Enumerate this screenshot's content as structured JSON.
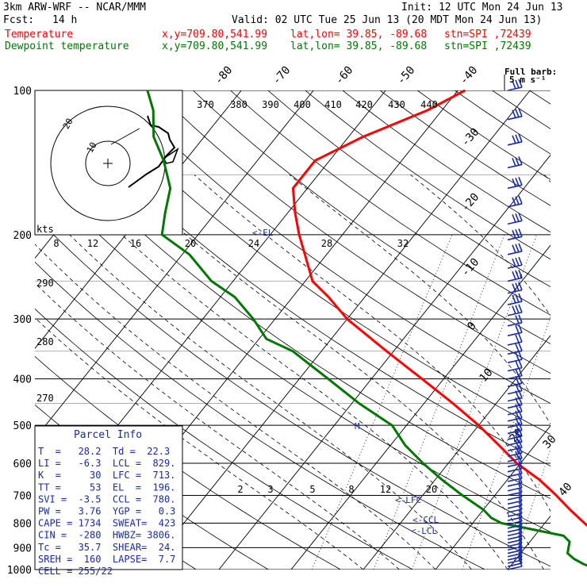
{
  "header": {
    "model": "3km ARW-WRF -- NCAR/MMM",
    "init": "Init: 12 UTC Mon 24 Jun 13",
    "fcst_label": "Fcst:",
    "fcst_value": "14 h",
    "valid": "Valid: 02 UTC Tue 25 Jun 13 (20 MDT Mon 24 Jun 13)",
    "lines": [
      {
        "name": "Temperature",
        "loc": "x,y=709.80,541.99",
        "latlon": "lat,lon= 39.85, -89.68",
        "stn": "stn=SPI ,72439",
        "color": "#ff0000"
      },
      {
        "name": "Dewpoint temperature",
        "loc": "x,y=709.80,541.99",
        "latlon": "lat,lon= 39.85, -89.68",
        "stn": "stn=SPI ,72439",
        "color": "#007700"
      }
    ]
  },
  "wind_key": {
    "title": "Full barb:",
    "value": "5 m s⁻¹"
  },
  "hodograph": {
    "unit": "kts",
    "ring_labels": [
      "10",
      "20"
    ]
  },
  "parcel_info": {
    "title": "Parcel Info",
    "rows": [
      "T  =   28.2  Td =  22.3",
      "LI =   -6.3  LCL =  829.",
      "K  =     30  LFC =  713.",
      "TT =     53  EL  =  196.",
      "SVI =  -3.5  CCL =  780.",
      "PW =   3.76  YGP =   0.3",
      "CAPE = 1734  SWEAT=  423",
      "CIN =  -280  HWBZ= 3806.",
      "Tc =   35.7  SHEAR=  24.",
      "SREH =  160  LAPSE=  7.7",
      "CELL = 255/22"
    ]
  },
  "chart_data": {
    "type": "skew-T log-P sounding",
    "pressure_ticks": [
      100,
      200,
      300,
      400,
      500,
      600,
      700,
      800,
      900,
      1000
    ],
    "isotherm_labels": [
      -80,
      -70,
      -60,
      -50,
      -40,
      -30,
      -20,
      -10,
      0,
      10,
      20,
      30,
      40
    ],
    "theta_labels": [
      370,
      380,
      390,
      400,
      410,
      420,
      430,
      440
    ],
    "theta_side_labels": [
      290,
      280,
      270
    ],
    "mixing_ratio_upper": [
      8,
      12,
      16,
      20,
      24,
      28,
      32
    ],
    "mixing_ratio_lower": [
      2,
      3,
      5,
      8,
      12,
      20
    ],
    "level_markers": [
      "<-EL",
      "<-LFC",
      "<-CCL",
      "<-LCL",
      "M"
    ],
    "series": [
      {
        "name": "Temperature",
        "color": "#ff0000",
        "p": [
          1000,
          990,
          975,
          950,
          925,
          900,
          875,
          850,
          800,
          750,
          700,
          650,
          600,
          550,
          500,
          450,
          400,
          350,
          300,
          270,
          250,
          220,
          200,
          180,
          160,
          140,
          125,
          110,
          100
        ],
        "t": [
          29,
          28,
          27,
          25,
          23.5,
          22,
          20.5,
          19,
          15.5,
          12,
          8.5,
          4.5,
          -0.5,
          -5,
          -10,
          -16,
          -23,
          -31,
          -40,
          -45,
          -49,
          -53,
          -56,
          -59,
          -62,
          -62,
          -58,
          -52,
          -49
        ]
      },
      {
        "name": "Dewpoint temperature",
        "color": "#007700",
        "p": [
          1000,
          990,
          975,
          950,
          925,
          900,
          875,
          850,
          800,
          780,
          750,
          700,
          650,
          600,
          550,
          500,
          450,
          400,
          350,
          330,
          300,
          270,
          250,
          220,
          200,
          180,
          160,
          140,
          125,
          110,
          100
        ],
        "t": [
          23,
          21.5,
          20,
          18,
          16.5,
          16,
          15.5,
          14,
          4,
          2,
          0,
          -4.5,
          -9,
          -13.5,
          -18,
          -22,
          -29,
          -36,
          -44,
          -49,
          -53,
          -58,
          -63,
          -69,
          -75,
          -77,
          -79,
          -83,
          -87,
          -90,
          -93
        ]
      }
    ],
    "wind_profile": [
      {
        "p": 100,
        "spd_ms": 20
      },
      {
        "p": 150,
        "spd_ms": 25
      },
      {
        "p": 200,
        "spd_ms": 30
      },
      {
        "p": 250,
        "spd_ms": 25
      },
      {
        "p": 300,
        "spd_ms": 20
      },
      {
        "p": 400,
        "spd_ms": 15
      },
      {
        "p": 500,
        "spd_ms": 12
      },
      {
        "p": 600,
        "spd_ms": 10
      },
      {
        "p": 700,
        "spd_ms": 10
      },
      {
        "p": 800,
        "spd_ms": 10
      },
      {
        "p": 900,
        "spd_ms": 10
      },
      {
        "p": 1000,
        "spd_ms": 5
      }
    ]
  }
}
